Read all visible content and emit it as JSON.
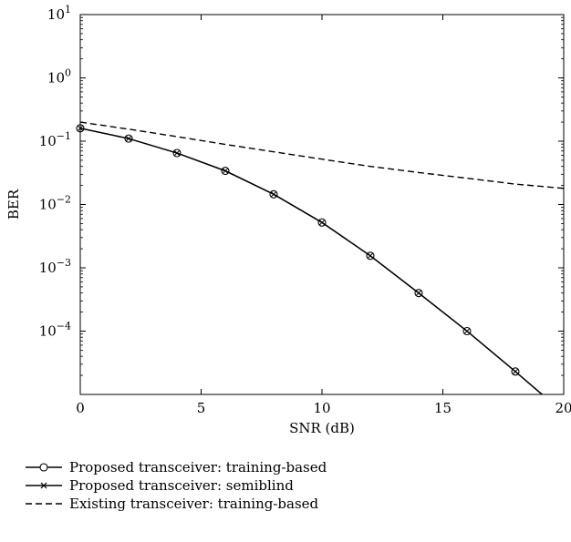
{
  "chart_data": {
    "type": "line",
    "xlabel": "SNR (dB)",
    "ylabel": "BER",
    "xlim": [
      0,
      20
    ],
    "ylim": [
      1e-05,
      10
    ],
    "yscale": "log",
    "grid": false,
    "legend_position": "bottom-left, below the axes",
    "x_ticks": [
      0,
      5,
      10,
      15,
      20
    ],
    "x_tick_labels": [
      "0",
      "5",
      "10",
      "15",
      "20"
    ],
    "y_ticks": [
      10,
      1,
      0.1,
      0.01,
      0.001,
      0.0001
    ],
    "y_tick_labels": [
      {
        "base": "10",
        "exp": "1"
      },
      {
        "base": "10",
        "exp": "0"
      },
      {
        "base": "10",
        "exp": "−1"
      },
      {
        "base": "10",
        "exp": "−2"
      },
      {
        "base": "10",
        "exp": "−3"
      },
      {
        "base": "10",
        "exp": "−4"
      }
    ],
    "series": [
      {
        "name": "Proposed transceiver: training-based",
        "line_style": "solid",
        "marker": "circle",
        "color": "#000000",
        "x": [
          0,
          2,
          4,
          6,
          8,
          10,
          12,
          14,
          16,
          18,
          19.2
        ],
        "y": [
          0.16,
          0.11,
          0.065,
          0.034,
          0.0145,
          0.0052,
          0.00155,
          0.0004,
          0.0001,
          2.3e-05,
          9.3e-06
        ]
      },
      {
        "name": "Proposed transceiver: semiblind",
        "line_style": "solid",
        "marker": "x",
        "color": "#000000",
        "x": [
          0,
          2,
          4,
          6,
          8,
          10,
          12,
          14,
          16,
          18,
          19.2
        ],
        "y": [
          0.16,
          0.11,
          0.065,
          0.034,
          0.0145,
          0.0052,
          0.00155,
          0.0004,
          0.0001,
          2.3e-05,
          9.3e-06
        ]
      },
      {
        "name": "Existing transceiver: training-based",
        "line_style": "dashed",
        "marker": "none",
        "color": "#000000",
        "x": [
          0,
          2,
          4,
          6,
          8,
          10,
          12,
          14,
          16,
          18,
          20
        ],
        "y": [
          0.2,
          0.155,
          0.118,
          0.089,
          0.068,
          0.052,
          0.04,
          0.032,
          0.026,
          0.021,
          0.018
        ]
      }
    ]
  }
}
